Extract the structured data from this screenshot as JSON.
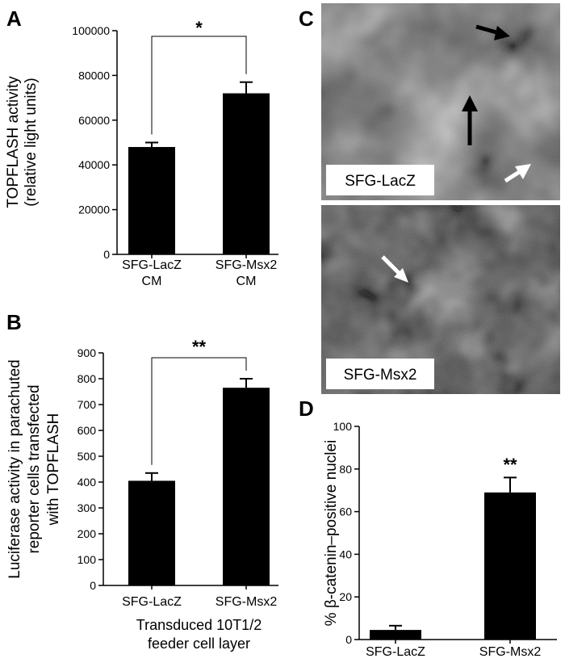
{
  "panels": {
    "a": {
      "letter": "A"
    },
    "b": {
      "letter": "B"
    },
    "c": {
      "letter": "C"
    },
    "d": {
      "letter": "D"
    }
  },
  "micrographs": {
    "top_label": "SFG-LacZ",
    "bottom_label": "SFG-Msx2",
    "arrow_colors": {
      "black": "#000000",
      "white": "#ffffff"
    }
  },
  "chart_data": [
    {
      "id": "A",
      "type": "bar",
      "categories": [
        [
          "SFG-LacZ",
          "CM"
        ],
        [
          "SFG-Msx2",
          "CM"
        ]
      ],
      "values": [
        48000,
        72000
      ],
      "errors": [
        2000,
        5000
      ],
      "ylabel": [
        "TOPFLASH activity",
        "(relative light units)"
      ],
      "xlabel": [],
      "ylim": [
        0,
        100000
      ],
      "yticks": [
        0,
        20000,
        40000,
        60000,
        80000,
        100000
      ],
      "significance": "*",
      "bar_color": "#000000",
      "grid": false
    },
    {
      "id": "B",
      "type": "bar",
      "categories": [
        [
          "SFG-LacZ"
        ],
        [
          "SFG-Msx2"
        ]
      ],
      "values": [
        405,
        765
      ],
      "errors": [
        30,
        35
      ],
      "ylabel": [
        "Luciferase activity in parachuted",
        "reporter cells transfected",
        "with TOPFLASH"
      ],
      "xlabel": [
        "Transduced 10T1/2",
        "feeder cell layer"
      ],
      "ylim": [
        0,
        900
      ],
      "yticks": [
        0,
        100,
        200,
        300,
        400,
        500,
        600,
        700,
        800,
        900
      ],
      "significance": "**",
      "bar_color": "#000000",
      "grid": false
    },
    {
      "id": "D",
      "type": "bar",
      "categories": [
        [
          "SFG-LacZ"
        ],
        [
          "SFG-Msx2"
        ]
      ],
      "values": [
        4.5,
        69
      ],
      "errors": [
        2,
        7
      ],
      "ylabel": [
        "% β-catenin–positive nuclei"
      ],
      "xlabel": [],
      "ylim": [
        0,
        100
      ],
      "yticks": [
        0,
        20,
        40,
        60,
        80,
        100
      ],
      "significance": "**",
      "bar_color": "#000000",
      "grid": false
    }
  ]
}
